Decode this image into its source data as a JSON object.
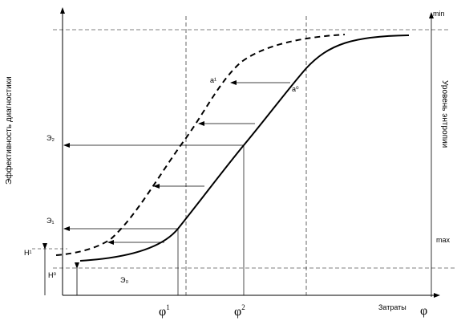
{
  "y_axis_label": "Эффективность диагностики",
  "x_axis_label": "Затраты",
  "x_axis_symbol": "φ",
  "right_axis_label": "Уровень энтропии",
  "right_axis_min": "min",
  "right_axis_max": "max",
  "level_labels": {
    "e2": "Э₂",
    "e1": "Э₁",
    "e0": "Э₀",
    "h1": "H¹",
    "h0": "H⁰"
  },
  "curve_point_labels": {
    "a1": "a¹",
    "a0": "a⁰"
  },
  "phi_ticks": [
    {
      "base": "φ",
      "sup": "1"
    },
    {
      "base": "φ",
      "sup": "2"
    }
  ]
}
